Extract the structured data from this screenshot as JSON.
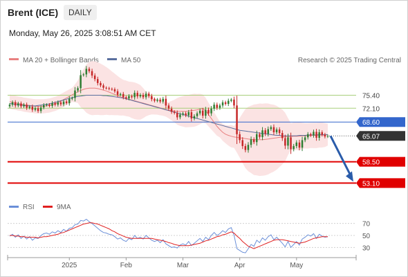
{
  "header": {
    "instrument": "Brent (ICE)",
    "period": "DAILY",
    "datetime": "Monday, May 26, 2025 3:08:51 AM CET",
    "credit": "Research © 2025 Trading Central"
  },
  "legend": {
    "ma20": "MA 20 + Bollinger Bands",
    "ma50": "MA 50",
    "rsi": "RSI",
    "rsi_ma": "9MA"
  },
  "colors": {
    "candle_up": "#2e7d32",
    "candle_down": "#c62828",
    "bollinger_fill": "#fbe3e3",
    "ma20": "#e88080",
    "ma50": "#5a6f9e",
    "last_price_line": "#3366cc",
    "key_level": "#e00000",
    "resistance_level": "#a8cf7a",
    "projection_arrow": "#2a5caa",
    "rsi_line": "#6a8fd8",
    "rsi_ma_line": "#e02020"
  },
  "chart_data": [
    {
      "type": "candlestick",
      "y_range": [
        50,
        82
      ],
      "x_labels": [
        "2025",
        "Feb",
        "Mar",
        "Apr",
        "May"
      ],
      "levels": [
        {
          "value": 75.4,
          "label": "75.40",
          "kind": "resistance"
        },
        {
          "value": 72.1,
          "label": "72.10",
          "kind": "resistance"
        },
        {
          "value": 68.6,
          "label": "68.60",
          "kind": "pivot"
        },
        {
          "value": 65.07,
          "label": "65.07",
          "kind": "last"
        },
        {
          "value": 58.5,
          "label": "58.50",
          "kind": "support"
        },
        {
          "value": 53.1,
          "label": "53.10",
          "kind": "support"
        }
      ],
      "closes": [
        73.0,
        73.6,
        72.8,
        73.3,
        72.6,
        73.0,
        72.2,
        72.5,
        71.7,
        72.1,
        71.4,
        72.3,
        72.9,
        73.0,
        72.7,
        73.4,
        73.0,
        73.6,
        73.1,
        73.8,
        73.4,
        74.5,
        74.7,
        76.6,
        77.2,
        80.5,
        80.7,
        82.1,
        81.5,
        80.4,
        79.5,
        78.5,
        77.9,
        77.3,
        77.2,
        77.0,
        76.9,
        76.4,
        75.5,
        75.7,
        74.9,
        74.6,
        75.2,
        74.9,
        76.0,
        75.1,
        75.5,
        74.9,
        75.8,
        75.2,
        74.4,
        74.0,
        74.3,
        73.8,
        74.5,
        72.8,
        72.0,
        71.2,
        70.9,
        69.8,
        70.5,
        70.8,
        70.3,
        71.1,
        69.5,
        70.1,
        70.8,
        71.5,
        70.2,
        71.7,
        70.8,
        72.0,
        73.0,
        72.2,
        72.8,
        73.6,
        73.2,
        74.0,
        74.3,
        72.8,
        65.5,
        64.0,
        62.5,
        61.5,
        62.8,
        64.2,
        63.5,
        65.5,
        64.8,
        66.5,
        65.6,
        66.8,
        67.3,
        66.0,
        66.7,
        65.8,
        64.5,
        62.6,
        64.7,
        61.7,
        62.5,
        63.4,
        62.1,
        64.0,
        64.7,
        65.5,
        65.2,
        66.1,
        64.6,
        66.0,
        65.4,
        64.9,
        65.07
      ],
      "ma20": [
        73.8,
        73.6,
        73.5,
        73.3,
        73.2,
        73.0,
        72.9,
        72.8,
        72.7,
        72.6,
        72.6,
        72.6,
        72.6,
        72.7,
        72.8,
        73.0,
        73.2,
        73.5,
        73.9,
        74.3,
        74.7,
        75.1,
        75.5,
        75.9,
        76.3,
        76.6,
        76.9,
        77.1,
        77.2,
        77.2,
        77.2,
        77.1,
        76.9,
        76.7,
        76.5,
        76.2,
        75.9,
        75.6,
        75.3,
        75.0,
        74.8,
        74.6,
        74.4,
        74.2,
        74.0,
        73.8,
        73.6,
        73.4,
        73.2,
        73.0,
        72.8,
        72.6,
        72.4,
        72.2,
        72.0,
        71.8,
        71.6,
        71.5,
        71.4,
        71.3,
        71.3,
        71.3,
        71.3,
        71.4,
        71.5,
        71.6,
        71.7,
        71.9,
        72.0,
        71.5,
        70.5,
        69.5,
        68.5,
        67.5,
        66.7,
        66.0,
        65.5,
        65.2,
        65.0,
        64.8,
        64.7,
        64.6,
        64.5,
        64.4,
        64.3,
        64.2,
        64.1,
        64.1,
        64.1,
        64.1,
        64.2,
        64.3,
        64.4,
        64.5,
        64.6,
        64.7,
        64.8,
        64.8,
        64.9,
        64.9,
        65.0,
        65.0,
        65.0,
        65.1,
        65.1,
        65.1,
        65.2,
        65.2,
        65.2,
        65.3,
        65.3,
        65.3,
        65.4
      ],
      "ma50": [
        73.3,
        73.2,
        73.1,
        73.0,
        72.9,
        72.8,
        72.7,
        72.7,
        72.7,
        72.7,
        72.8,
        72.9,
        73.0,
        73.1,
        73.2,
        73.4,
        73.6,
        73.8,
        74.0,
        74.2,
        74.4,
        74.6,
        74.8,
        75.0,
        75.1,
        75.2,
        75.3,
        75.4,
        75.4,
        75.4,
        75.4,
        75.4,
        75.4,
        75.3,
        75.3,
        75.2,
        75.1,
        75.0,
        74.9,
        74.8,
        74.7,
        74.5,
        74.3,
        74.1,
        73.9,
        73.7,
        73.5,
        73.3,
        73.1,
        72.9,
        72.7,
        72.5,
        72.3,
        72.1,
        71.9,
        71.7,
        71.5,
        71.3,
        71.1,
        70.9,
        70.7,
        70.5,
        70.3,
        70.1,
        69.9,
        69.7,
        69.5,
        69.3,
        69.1,
        68.9,
        68.7,
        68.5,
        68.3,
        68.1,
        67.9,
        67.7,
        67.5,
        67.3,
        67.1,
        66.9,
        66.7,
        66.5,
        66.4,
        66.3,
        66.2,
        66.1,
        66.0,
        65.9,
        65.8,
        65.7,
        65.6,
        65.5,
        65.4,
        65.3,
        65.2,
        65.2,
        65.1,
        65.1,
        65.1,
        65.1,
        65.1,
        65.1,
        65.2,
        65.2,
        65.2,
        65.3,
        65.3,
        65.3,
        65.3,
        65.4,
        65.4,
        65.4,
        65.4
      ]
    },
    {
      "type": "line",
      "title": "RSI",
      "y_ticks": [
        70,
        50,
        30
      ],
      "y_range": [
        20,
        80
      ],
      "series": [
        {
          "name": "RSI",
          "values": [
            49,
            52,
            47,
            51,
            45,
            49,
            44,
            48,
            42,
            46,
            45,
            50,
            53,
            54,
            52,
            56,
            54,
            58,
            55,
            60,
            57,
            62,
            63,
            68,
            69,
            75,
            74,
            77,
            73,
            70,
            66,
            62,
            58,
            55,
            54,
            52,
            51,
            48,
            44,
            46,
            42,
            40,
            45,
            43,
            50,
            45,
            47,
            44,
            50,
            46,
            42,
            40,
            42,
            38,
            43,
            36,
            33,
            30,
            31,
            29,
            34,
            36,
            34,
            40,
            33,
            37,
            41,
            45,
            40,
            47,
            43,
            50,
            55,
            50,
            53,
            58,
            55,
            61,
            63,
            50,
            28,
            25,
            22,
            21,
            28,
            35,
            32,
            42,
            38,
            46,
            42,
            48,
            51,
            43,
            47,
            42,
            37,
            31,
            40,
            30,
            35,
            40,
            34,
            44,
            47,
            51,
            49,
            53,
            45,
            52,
            49,
            47,
            48
          ]
        },
        {
          "name": "9MA",
          "values": [
            50,
            50,
            49,
            49,
            48,
            48,
            47,
            47,
            47,
            47,
            46,
            47,
            48,
            48,
            49,
            50,
            51,
            52,
            54,
            55,
            57,
            59,
            61,
            63,
            65,
            67,
            69,
            70,
            71,
            71,
            70,
            69,
            67,
            65,
            63,
            61,
            58,
            56,
            53,
            51,
            49,
            47,
            46,
            45,
            45,
            45,
            45,
            45,
            45,
            45,
            45,
            44,
            43,
            42,
            41,
            40,
            38,
            37,
            35,
            34,
            33,
            33,
            33,
            33,
            34,
            35,
            36,
            37,
            39,
            41,
            42,
            44,
            46,
            48,
            49,
            51,
            52,
            54,
            56,
            54,
            49,
            45,
            40,
            36,
            32,
            30,
            28,
            30,
            32,
            34,
            36,
            38,
            40,
            42,
            43,
            43,
            43,
            42,
            41,
            40,
            39,
            38,
            37,
            38,
            39,
            41,
            43,
            45,
            46,
            47,
            48,
            48,
            48
          ]
        }
      ]
    }
  ]
}
